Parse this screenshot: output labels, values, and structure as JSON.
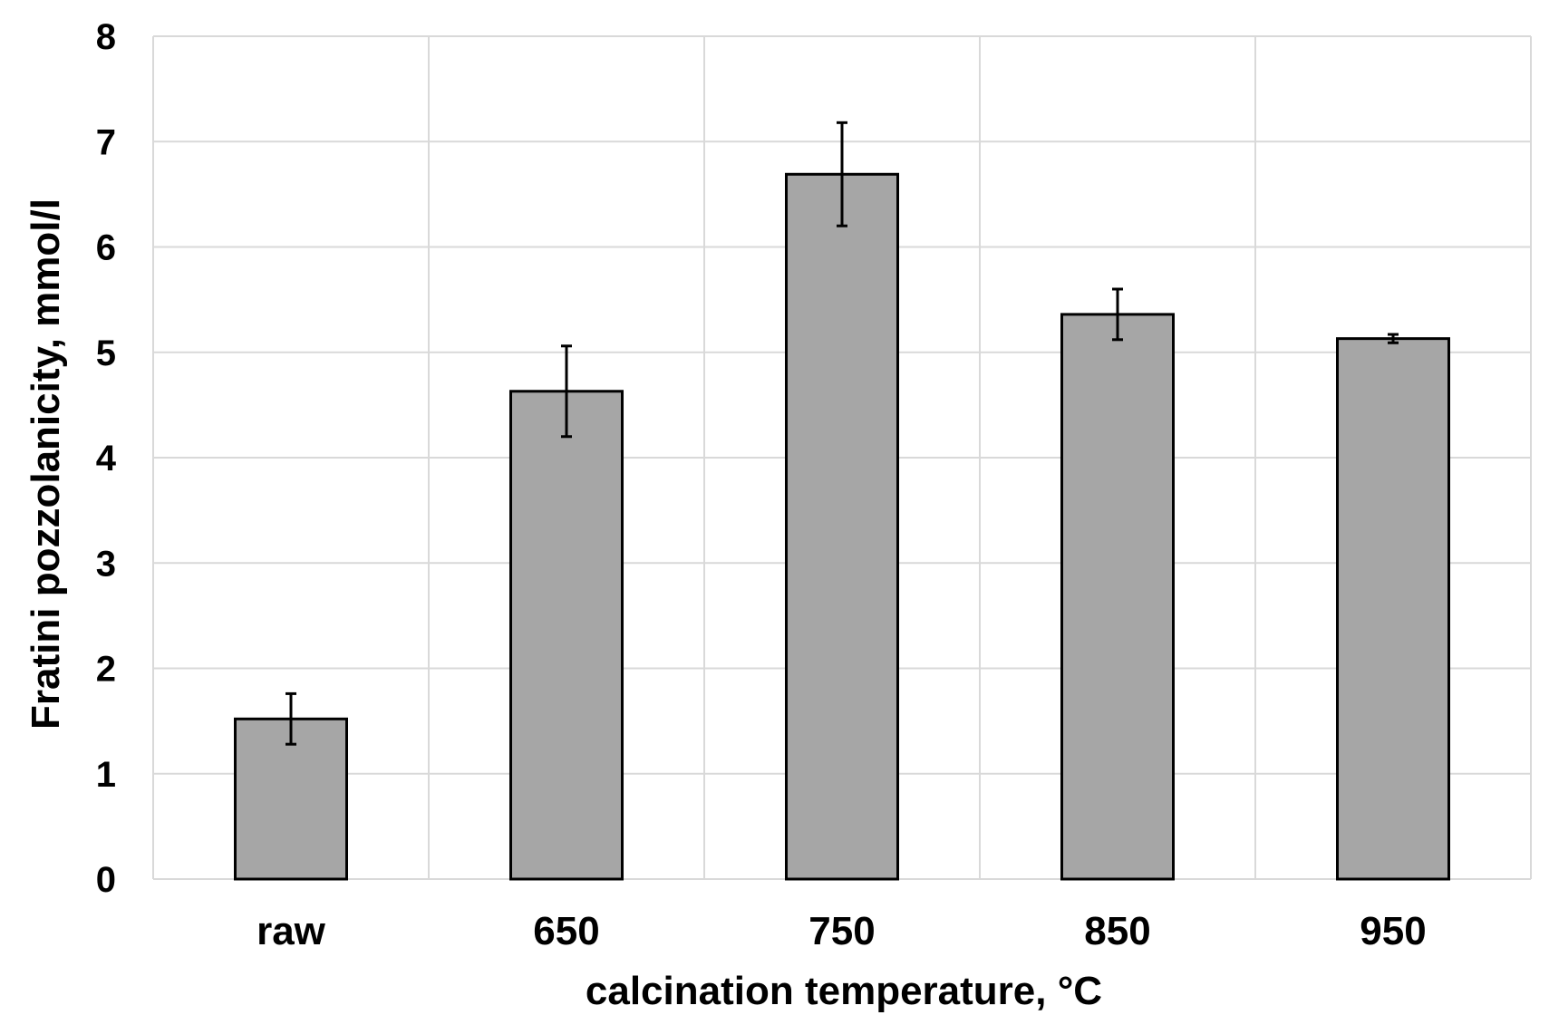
{
  "chart_data": {
    "type": "bar",
    "title": "",
    "xlabel": "calcination temperature, °C",
    "ylabel": "Fratini pozzolanicity, mmol/l",
    "categories": [
      "raw",
      "650",
      "750",
      "850",
      "950"
    ],
    "values": [
      1.52,
      4.63,
      6.69,
      5.36,
      5.13
    ],
    "error": [
      0.24,
      0.43,
      0.49,
      0.24,
      0.04
    ],
    "ylim": [
      0,
      8
    ],
    "yticks": [
      0,
      1,
      2,
      3,
      4,
      5,
      6,
      7,
      8
    ],
    "ytick_labels": [
      "0",
      "1",
      "2",
      "3",
      "4",
      "5",
      "6",
      "7",
      "8"
    ],
    "grid": true,
    "bar_color": "#a6a6a6",
    "bar_edge_color": "#000000",
    "grid_color": "#d9d9d9"
  }
}
